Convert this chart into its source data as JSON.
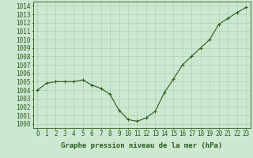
{
  "x": [
    0,
    1,
    2,
    3,
    4,
    5,
    6,
    7,
    8,
    9,
    10,
    11,
    12,
    13,
    14,
    15,
    16,
    17,
    18,
    19,
    20,
    21,
    22,
    23
  ],
  "y": [
    1004.0,
    1004.8,
    1005.0,
    1005.0,
    1005.0,
    1005.2,
    1004.6,
    1004.2,
    1003.5,
    1001.6,
    1000.5,
    1000.3,
    1000.7,
    1001.5,
    1003.7,
    1005.3,
    1007.0,
    1008.0,
    1009.0,
    1010.0,
    1011.8,
    1012.5,
    1013.2,
    1013.8
  ],
  "line_color": "#2d5a1b",
  "marker": "+",
  "marker_color": "#2d5a1b",
  "bg_color": "#cce8d0",
  "grid_color": "#aacaaa",
  "xlabel": "Graphe pression niveau de la mer (hPa)",
  "xlabel_fontsize": 6.5,
  "xlabel_color": "#2d5a1b",
  "ylabel_ticks": [
    1000,
    1001,
    1002,
    1003,
    1004,
    1005,
    1006,
    1007,
    1008,
    1009,
    1010,
    1011,
    1012,
    1013,
    1014
  ],
  "xlim": [
    -0.5,
    23.5
  ],
  "ylim": [
    999.5,
    1014.5
  ],
  "tick_color": "#2d5a1b",
  "tick_fontsize": 5.5
}
